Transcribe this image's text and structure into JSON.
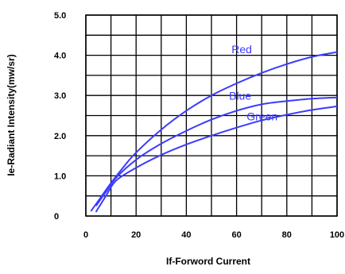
{
  "chart_data": {
    "type": "line",
    "title": "",
    "xlabel": "If-Forword Current",
    "ylabel": "Ie-Radiant Intensity(mw/sr)",
    "xlim": [
      0,
      100
    ],
    "ylim": [
      0,
      5.0
    ],
    "x_ticks": [
      "0",
      "20",
      "40",
      "60",
      "80",
      "100"
    ],
    "y_ticks": [
      "0",
      "1.0",
      "2.0",
      "3.0",
      "4.0",
      "5.0"
    ],
    "grid": true,
    "series": [
      {
        "name": "Red",
        "color": "#3b3bff",
        "x": [
          2,
          5,
          10,
          15,
          20,
          30,
          40,
          50,
          60,
          70,
          80,
          90,
          100
        ],
        "y": [
          0.12,
          0.38,
          0.82,
          1.22,
          1.58,
          2.15,
          2.62,
          3.0,
          3.3,
          3.56,
          3.78,
          3.96,
          4.08
        ]
      },
      {
        "name": "Blue",
        "color": "#3b3bff",
        "x": [
          4,
          8,
          12,
          20,
          30,
          40,
          50,
          60,
          70,
          80,
          90,
          100
        ],
        "y": [
          0.25,
          0.6,
          0.95,
          1.4,
          1.8,
          2.12,
          2.4,
          2.62,
          2.78,
          2.86,
          2.92,
          2.95
        ]
      },
      {
        "name": "Green",
        "color": "#3b3bff",
        "x": [
          4,
          8,
          12,
          20,
          30,
          40,
          50,
          60,
          70,
          80,
          90,
          100
        ],
        "y": [
          0.1,
          0.5,
          0.88,
          1.2,
          1.52,
          1.78,
          2.0,
          2.2,
          2.38,
          2.52,
          2.64,
          2.73
        ]
      }
    ],
    "series_labels": [
      {
        "name": "Red",
        "x": 58,
        "y": 4.05
      },
      {
        "name": "Blue",
        "x": 57,
        "y": 2.9
      },
      {
        "name": "Green",
        "x": 64,
        "y": 2.38
      }
    ]
  }
}
